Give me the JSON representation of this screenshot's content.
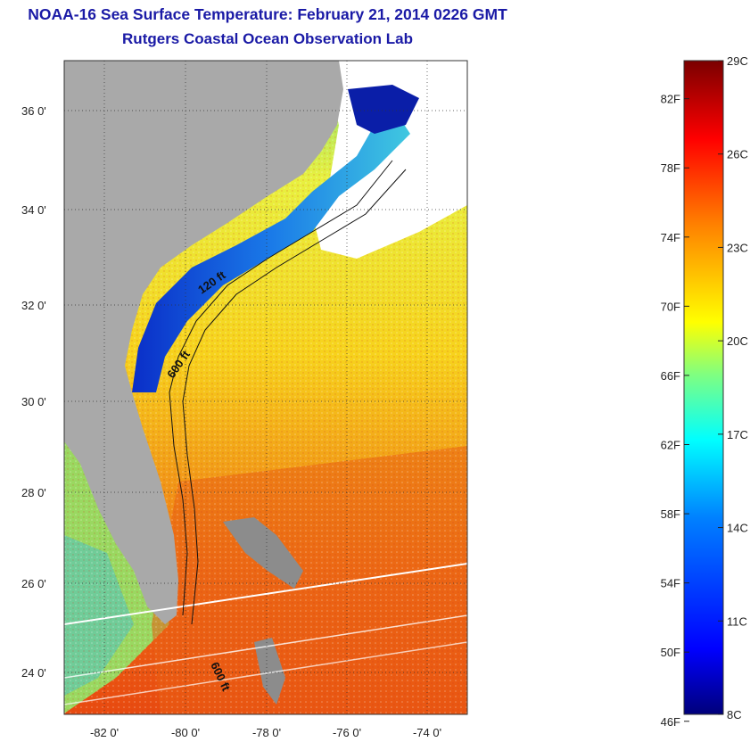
{
  "header": {
    "title": "NOAA-16 Sea Surface Temperature:  February 21, 2014 0226 GMT",
    "subtitle": "Rutgers Coastal Ocean Observation Lab"
  },
  "map": {
    "lat_labels": [
      "36 0'",
      "34 0'",
      "32 0'",
      "30 0'",
      "28 0'",
      "26 0'",
      "24 0'"
    ],
    "lon_labels": [
      "-82 0'",
      "-80 0'",
      "-78 0'",
      "-76 0'",
      "-74 0'"
    ],
    "contour_labels": [
      "120 ft",
      "600 ft",
      "600 ft"
    ],
    "colors": {
      "land": "#a9a9a9",
      "cloud": "#ffffff",
      "cold_water": "#0a2ec8",
      "warm_water": "#f07a12"
    }
  },
  "colorbar": {
    "celsius_labels": [
      "29C",
      "26C",
      "23C",
      "20C",
      "17C",
      "14C",
      "11C",
      "8C"
    ],
    "fahrenheit_labels": [
      "82F",
      "78F",
      "74F",
      "70F",
      "66F",
      "62F",
      "58F",
      "54F",
      "50F",
      "46F"
    ],
    "celsius_values": [
      29,
      26,
      23,
      20,
      17,
      14,
      11,
      8
    ],
    "fahrenheit_values": [
      82,
      78,
      74,
      70,
      66,
      62,
      58,
      54,
      50,
      46
    ],
    "stops": [
      "#00007a",
      "#0000ff",
      "#0080ff",
      "#00ffff",
      "#80ff80",
      "#ffff00",
      "#ff8000",
      "#ff0000",
      "#7a0000"
    ]
  }
}
